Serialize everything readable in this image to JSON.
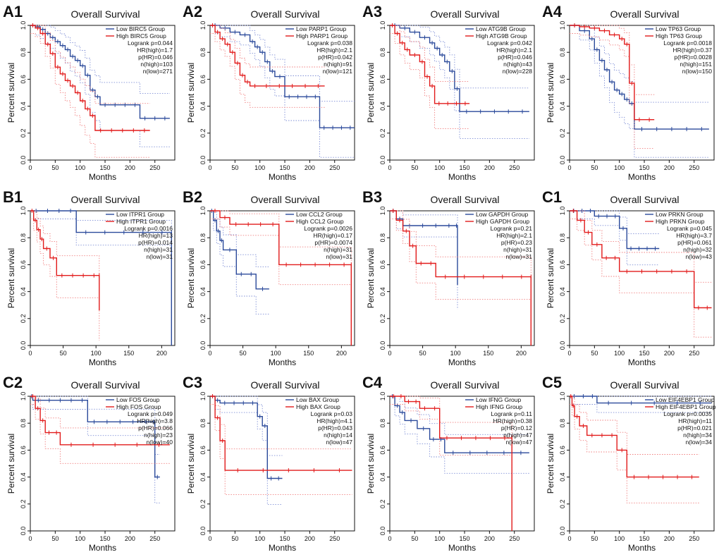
{
  "colors": {
    "low": "#2b4a9b",
    "high": "#e21b1b",
    "low_ci": "#7f8fd6",
    "high_ci": "#f08080",
    "axis": "#111111"
  },
  "common": {
    "xlabel": "Months",
    "ylabel": "Percent survival"
  },
  "chart_data": [
    {
      "id": "A1",
      "type": "line",
      "title": "Overall Survival",
      "xlabel": "Months",
      "ylabel": "Percent survival",
      "xlim": [
        0,
        290
      ],
      "ylim": [
        0,
        1
      ],
      "xticks": [
        "0",
        "50",
        "100",
        "150",
        "200",
        "250"
      ],
      "yticks": [
        "0.0",
        "0.2",
        "0.4",
        "0.6",
        "0.8",
        "1.0"
      ],
      "legend": [
        "Low BIRC5 Group",
        "High BIRC5 Group"
      ],
      "stats": [
        "Logrank p=0.044",
        "HR(high)=1.7",
        "p(HR)=0.046",
        "n(high)=103",
        "n(low)=271"
      ],
      "series": [
        {
          "name": "Low BIRC5 Group",
          "x": [
            0,
            10,
            20,
            30,
            40,
            50,
            60,
            70,
            80,
            90,
            100,
            110,
            120,
            130,
            140,
            220,
            280
          ],
          "values": [
            1.0,
            0.99,
            0.97,
            0.94,
            0.91,
            0.88,
            0.85,
            0.82,
            0.77,
            0.74,
            0.7,
            0.63,
            0.52,
            0.47,
            0.41,
            0.31,
            0.31
          ]
        },
        {
          "name": "High BIRC5 Group",
          "x": [
            0,
            10,
            20,
            30,
            40,
            50,
            60,
            70,
            80,
            90,
            100,
            110,
            120,
            130,
            240
          ],
          "values": [
            1.0,
            0.98,
            0.94,
            0.86,
            0.79,
            0.69,
            0.64,
            0.59,
            0.55,
            0.5,
            0.44,
            0.38,
            0.33,
            0.22,
            0.22
          ]
        }
      ]
    },
    {
      "id": "A2",
      "type": "line",
      "title": "Overall Survival",
      "xlabel": "Months",
      "ylabel": "Percent survival",
      "xlim": [
        0,
        290
      ],
      "ylim": [
        0,
        1
      ],
      "xticks": [
        "0",
        "50",
        "100",
        "150",
        "200",
        "250"
      ],
      "yticks": [
        "0.0",
        "0.2",
        "0.4",
        "0.6",
        "0.8",
        "1.0"
      ],
      "legend": [
        "Low PARP1 Group",
        "High PARP1 Group"
      ],
      "stats": [
        "Logrank p=0.038",
        "HR(high)=2.1",
        "p(HR)=0.042",
        "n(high)=91",
        "n(low)=121"
      ],
      "series": [
        {
          "name": "Low PARP1 Group",
          "x": [
            0,
            20,
            40,
            60,
            80,
            90,
            100,
            110,
            120,
            130,
            150,
            220,
            290
          ],
          "values": [
            1.0,
            0.98,
            0.95,
            0.93,
            0.88,
            0.84,
            0.8,
            0.73,
            0.66,
            0.62,
            0.47,
            0.24,
            0.24
          ]
        },
        {
          "name": "High PARP1 Group",
          "x": [
            0,
            10,
            20,
            30,
            40,
            50,
            60,
            70,
            80,
            100,
            230
          ],
          "values": [
            1.0,
            0.95,
            0.9,
            0.86,
            0.8,
            0.72,
            0.63,
            0.58,
            0.55,
            0.55,
            0.55
          ]
        }
      ]
    },
    {
      "id": "A3",
      "type": "line",
      "title": "Overall Survival",
      "xlabel": "Months",
      "ylabel": "Percent survival",
      "xlim": [
        0,
        290
      ],
      "ylim": [
        0,
        1
      ],
      "xticks": [
        "0",
        "50",
        "100",
        "150",
        "200",
        "250"
      ],
      "yticks": [
        "0.0",
        "0.2",
        "0.4",
        "0.6",
        "0.8",
        "1.0"
      ],
      "legend": [
        "Low ATG9B Group",
        "High ATG9B Group"
      ],
      "stats": [
        "Logrank p=0.042",
        "HR(high)=2.1",
        "p(HR)=0.046",
        "n(high)=43",
        "n(low)=228"
      ],
      "series": [
        {
          "name": "Low ATG9B Group",
          "x": [
            0,
            20,
            40,
            60,
            80,
            90,
            100,
            110,
            120,
            130,
            140,
            280
          ],
          "values": [
            1.0,
            0.98,
            0.95,
            0.91,
            0.87,
            0.83,
            0.78,
            0.73,
            0.66,
            0.53,
            0.36,
            0.36
          ]
        },
        {
          "name": "High ATG9B Group",
          "x": [
            0,
            10,
            20,
            30,
            40,
            60,
            70,
            80,
            90,
            160
          ],
          "values": [
            1.0,
            0.94,
            0.87,
            0.82,
            0.78,
            0.73,
            0.62,
            0.55,
            0.42,
            0.42
          ]
        }
      ]
    },
    {
      "id": "A4",
      "type": "line",
      "title": "Overall Survival",
      "xlabel": "Months",
      "ylabel": "Percent survival",
      "xlim": [
        0,
        290
      ],
      "ylim": [
        0,
        1
      ],
      "xticks": [
        "0",
        "50",
        "100",
        "150",
        "200",
        "250"
      ],
      "yticks": [
        "0.0",
        "0.2",
        "0.4",
        "0.6",
        "0.8",
        "1.0"
      ],
      "legend": [
        "Low TP63 Group",
        "High TP63 Group"
      ],
      "stats": [
        "Logrank p=0.0018",
        "HR(high)=0.37",
        "p(HR)=0.0028",
        "n(high)=151",
        "n(low)=150"
      ],
      "series": [
        {
          "name": "Low TP63 Group",
          "x": [
            0,
            20,
            40,
            50,
            60,
            70,
            80,
            90,
            100,
            110,
            120,
            130,
            280
          ],
          "values": [
            1.0,
            0.96,
            0.9,
            0.82,
            0.74,
            0.67,
            0.58,
            0.52,
            0.49,
            0.45,
            0.42,
            0.23,
            0.23
          ]
        },
        {
          "name": "High TP63 Group",
          "x": [
            0,
            20,
            40,
            60,
            80,
            100,
            110,
            120,
            130,
            170
          ],
          "values": [
            1.0,
            0.99,
            0.98,
            0.96,
            0.93,
            0.9,
            0.86,
            0.57,
            0.3,
            0.3
          ]
        }
      ]
    },
    {
      "id": "B1",
      "type": "line",
      "title": "Overall Survival",
      "xlabel": "Months",
      "ylabel": "Percent survival",
      "xlim": [
        0,
        220
      ],
      "ylim": [
        0,
        1
      ],
      "xticks": [
        "0",
        "50",
        "100",
        "150",
        "200"
      ],
      "yticks": [
        "0.0",
        "0.2",
        "0.4",
        "0.6",
        "0.8",
        "1.0"
      ],
      "legend": [
        "Low ITPR1 Group",
        "High ITPR1 Group"
      ],
      "stats": [
        "Logrank p=0.0016",
        "HR(high)=13",
        "p(HR)=0.014",
        "n(high)=31",
        "n(low)=31"
      ],
      "series": [
        {
          "name": "Low ITPR1 Group",
          "x": [
            0,
            70,
            215,
            215
          ],
          "values": [
            1.0,
            0.84,
            0.84,
            0.0
          ]
        },
        {
          "name": "High ITPR1 Group",
          "x": [
            0,
            5,
            10,
            15,
            20,
            30,
            40,
            105,
            105
          ],
          "values": [
            1.0,
            0.93,
            0.86,
            0.79,
            0.72,
            0.65,
            0.52,
            0.52,
            0.26
          ]
        }
      ]
    },
    {
      "id": "B2",
      "type": "line",
      "title": "Overall Survival",
      "xlabel": "Months",
      "ylabel": "Percent survival",
      "xlim": [
        0,
        220
      ],
      "ylim": [
        0,
        1
      ],
      "xticks": [
        "0",
        "50",
        "100",
        "150",
        "200"
      ],
      "yticks": [
        "0.0",
        "0.2",
        "0.4",
        "0.6",
        "0.8",
        "1.0"
      ],
      "legend": [
        "Low CCL2 Group",
        "High CCL2 Group"
      ],
      "stats": [
        "Logrank p=0.0026",
        "HR(high)=0.17",
        "p(HR)=0.0074",
        "n(high)=31",
        "n(low)=31"
      ],
      "series": [
        {
          "name": "Low CCL2 Group",
          "x": [
            0,
            5,
            10,
            15,
            20,
            40,
            70,
            90
          ],
          "values": [
            1.0,
            0.93,
            0.85,
            0.78,
            0.71,
            0.53,
            0.42,
            0.42
          ]
        },
        {
          "name": "High CCL2 Group",
          "x": [
            0,
            15,
            30,
            105,
            215,
            215
          ],
          "values": [
            1.0,
            0.95,
            0.9,
            0.6,
            0.6,
            0.0
          ]
        }
      ]
    },
    {
      "id": "B3",
      "type": "line",
      "title": "Overall Survival",
      "xlabel": "Months",
      "ylabel": "Percent survival",
      "xlim": [
        0,
        220
      ],
      "ylim": [
        0,
        1
      ],
      "xticks": [
        "0",
        "50",
        "100",
        "150",
        "200"
      ],
      "yticks": [
        "0.0",
        "0.2",
        "0.4",
        "0.6",
        "0.8",
        "1.0"
      ],
      "legend": [
        "Low GAPDH Group",
        "High GAPDH Group"
      ],
      "stats": [
        "Logrank p=0.21",
        "HR(high)=2.1",
        "p(HR)=0.23",
        "n(high)=31",
        "n(low)=31"
      ],
      "series": [
        {
          "name": "Low GAPDH Group",
          "x": [
            0,
            10,
            20,
            100,
            103
          ],
          "values": [
            1.0,
            0.94,
            0.89,
            0.89,
            0.45
          ]
        },
        {
          "name": "High GAPDH Group",
          "x": [
            0,
            10,
            20,
            30,
            40,
            70,
            215,
            215
          ],
          "values": [
            1.0,
            0.93,
            0.85,
            0.74,
            0.61,
            0.51,
            0.51,
            0.0
          ]
        }
      ]
    },
    {
      "id": "C1",
      "type": "line",
      "title": "Overall Survival",
      "xlabel": "Months",
      "ylabel": "Percent survival",
      "xlim": [
        0,
        290
      ],
      "ylim": [
        0,
        1
      ],
      "xticks": [
        "0",
        "50",
        "100",
        "150",
        "200",
        "250"
      ],
      "yticks": [
        "0.0",
        "0.2",
        "0.4",
        "0.6",
        "0.8",
        "1.0"
      ],
      "legend": [
        "Low PRKN Group",
        "High PRKN Group"
      ],
      "stats": [
        "Logrank p=0.045",
        "HR(high)=3.7",
        "p(HR)=0.061",
        "n(high)=32",
        "n(low)=43"
      ],
      "series": [
        {
          "name": "Low PRKN Group",
          "x": [
            0,
            50,
            100,
            115,
            180
          ],
          "values": [
            1.0,
            0.96,
            0.87,
            0.72,
            0.72
          ]
        },
        {
          "name": "High PRKN Group",
          "x": [
            0,
            15,
            30,
            45,
            65,
            100,
            250,
            285
          ],
          "values": [
            1.0,
            0.93,
            0.84,
            0.75,
            0.65,
            0.55,
            0.28,
            0.28
          ]
        }
      ]
    },
    {
      "id": "C2",
      "type": "line",
      "title": "Overall Survival",
      "xlabel": "Months",
      "ylabel": "Percent survival",
      "xlim": [
        0,
        290
      ],
      "ylim": [
        0,
        1
      ],
      "xticks": [
        "0",
        "50",
        "100",
        "150",
        "200",
        "250"
      ],
      "yticks": [
        "0.0",
        "0.2",
        "0.4",
        "0.6",
        "0.8",
        "1.0"
      ],
      "legend": [
        "Low FOS Group",
        "High FOS Group"
      ],
      "stats": [
        "Logrank p=0.049",
        "HR(high)=3.8",
        "p(HR)=0.066",
        "n(high)=23",
        "n(low)=40"
      ],
      "series": [
        {
          "name": "Low FOS Group",
          "x": [
            0,
            5,
            115,
            245,
            250,
            260
          ],
          "values": [
            1.0,
            0.97,
            0.81,
            0.81,
            0.4,
            0.4
          ]
        },
        {
          "name": "High FOS Group",
          "x": [
            0,
            10,
            20,
            30,
            60,
            280
          ],
          "values": [
            1.0,
            0.91,
            0.82,
            0.73,
            0.64,
            0.64
          ]
        }
      ]
    },
    {
      "id": "C3",
      "type": "line",
      "title": "Overall Survival",
      "xlabel": "Months",
      "ylabel": "Percent survival",
      "xlim": [
        0,
        290
      ],
      "ylim": [
        0,
        1
      ],
      "xticks": [
        "0",
        "50",
        "100",
        "150",
        "200",
        "250"
      ],
      "yticks": [
        "0.0",
        "0.2",
        "0.4",
        "0.6",
        "0.8",
        "1.0"
      ],
      "legend": [
        "Low BAX Group",
        "High BAX Group"
      ],
      "stats": [
        "Logrank p=0.03",
        "HR(high)=4.1",
        "p(HR)=0.043",
        "n(high)=14",
        "n(low)=47"
      ],
      "series": [
        {
          "name": "Low BAX Group",
          "x": [
            0,
            10,
            20,
            95,
            105,
            115,
            145
          ],
          "values": [
            1.0,
            0.97,
            0.95,
            0.85,
            0.78,
            0.39,
            0.39
          ]
        },
        {
          "name": "High BAX Group",
          "x": [
            0,
            10,
            20,
            30,
            285
          ],
          "values": [
            1.0,
            0.84,
            0.67,
            0.45,
            0.45
          ]
        }
      ]
    },
    {
      "id": "C4",
      "type": "line",
      "title": "Overall Survival",
      "xlabel": "Months",
      "ylabel": "Percent survival",
      "xlim": [
        0,
        290
      ],
      "ylim": [
        0,
        1
      ],
      "xticks": [
        "0",
        "50",
        "100",
        "150",
        "200",
        "250"
      ],
      "yticks": [
        "0.0",
        "0.2",
        "0.4",
        "0.6",
        "0.8",
        "1.0"
      ],
      "legend": [
        "Low IFNG Group",
        "High IFNG Group"
      ],
      "stats": [
        "Logrank p=0.11",
        "HR(high)=0.38",
        "p(HR)=0.12",
        "n(high)=47",
        "n(low)=47"
      ],
      "series": [
        {
          "name": "Low IFNG Group",
          "x": [
            0,
            10,
            20,
            30,
            55,
            80,
            110,
            280
          ],
          "values": [
            1.0,
            0.93,
            0.88,
            0.82,
            0.76,
            0.68,
            0.58,
            0.58
          ]
        },
        {
          "name": "High IFNG Group",
          "x": [
            0,
            30,
            60,
            100,
            245,
            245
          ],
          "values": [
            1.0,
            0.96,
            0.91,
            0.69,
            0.69,
            0.0
          ]
        }
      ]
    },
    {
      "id": "C5",
      "type": "line",
      "title": "Overall Survival",
      "xlabel": "Months",
      "ylabel": "Percent survival",
      "xlim": [
        0,
        290
      ],
      "ylim": [
        0,
        1
      ],
      "xticks": [
        "0",
        "50",
        "100",
        "150",
        "200",
        "250"
      ],
      "yticks": [
        "0.0",
        "0.2",
        "0.4",
        "0.6",
        "0.8",
        "1.0"
      ],
      "legend": [
        "Low EIF4EBP1 Group",
        "High EIF4EBP1 Group"
      ],
      "stats": [
        "Logrank p=0.0035",
        "HR(high)=11",
        "p(HR)=0.021",
        "n(high)=34",
        "n(low)=34"
      ],
      "series": [
        {
          "name": "Low EIF4EBP1 Group",
          "x": [
            0,
            55,
            285
          ],
          "values": [
            1.0,
            0.95,
            0.95
          ]
        },
        {
          "name": "High EIF4EBP1 Group",
          "x": [
            0,
            5,
            10,
            20,
            35,
            95,
            115,
            260
          ],
          "values": [
            1.0,
            0.93,
            0.85,
            0.78,
            0.71,
            0.6,
            0.4,
            0.4
          ]
        }
      ]
    }
  ]
}
